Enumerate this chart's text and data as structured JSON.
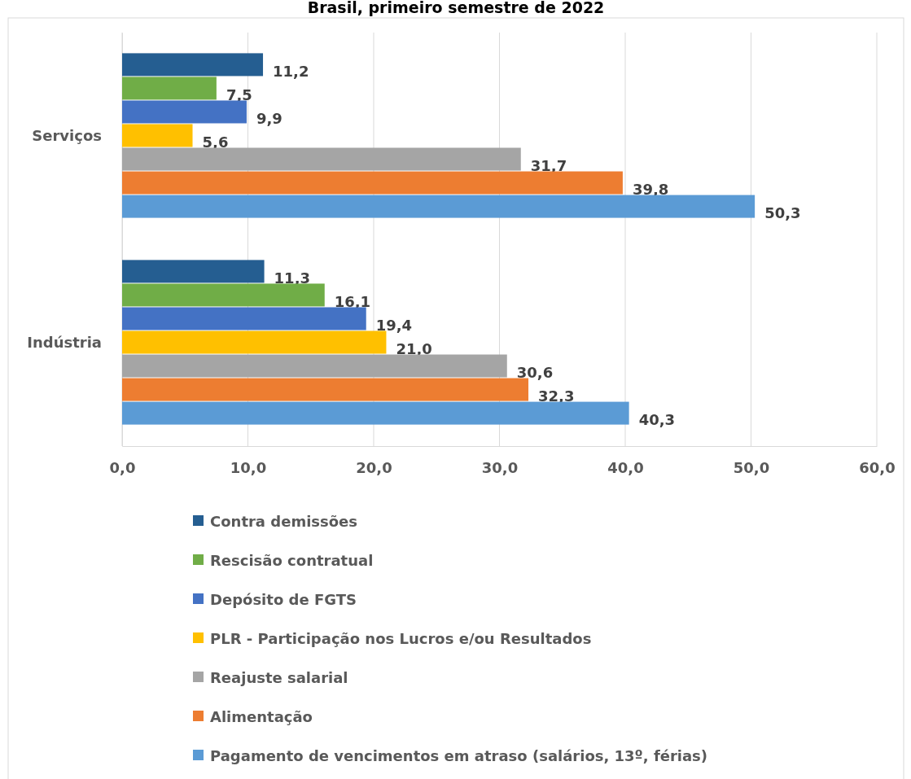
{
  "chart_data": {
    "type": "bar",
    "orientation": "horizontal",
    "title": "Brasil, primeiro semestre de 2022",
    "categories": [
      "Serviços",
      "Indústria"
    ],
    "series": [
      {
        "name": "Contra demissões",
        "color": "#255e91",
        "values": [
          11.2,
          11.3
        ],
        "value_labels": [
          "11,2",
          "11,3"
        ]
      },
      {
        "name": "Rescisão contratual",
        "color": "#70ad47",
        "values": [
          7.5,
          16.1
        ],
        "value_labels": [
          "7,5",
          "16,1"
        ]
      },
      {
        "name": "Depósito de FGTS",
        "color": "#4472c4",
        "values": [
          9.9,
          19.4
        ],
        "value_labels": [
          "9,9",
          "19,4"
        ]
      },
      {
        "name": "PLR - Participação nos Lucros e/ou Resultados",
        "color": "#ffc000",
        "values": [
          5.6,
          21.0
        ],
        "value_labels": [
          "5,6",
          "21,0"
        ]
      },
      {
        "name": "Reajuste salarial",
        "color": "#a5a5a5",
        "values": [
          31.7,
          30.6
        ],
        "value_labels": [
          "31,7",
          "30,6"
        ]
      },
      {
        "name": "Alimentação",
        "color": "#ed7d31",
        "values": [
          39.8,
          32.3
        ],
        "value_labels": [
          "39,8",
          "32,3"
        ]
      },
      {
        "name": "Pagamento de vencimentos em atraso (salários, 13º, férias)",
        "color": "#5b9bd5",
        "values": [
          50.3,
          40.3
        ],
        "value_labels": [
          "50,3",
          "40,3"
        ]
      }
    ],
    "xlim": [
      0,
      60
    ],
    "xticks": [
      {
        "value": 0,
        "label": "0,0"
      },
      {
        "value": 10,
        "label": "10,0"
      },
      {
        "value": 20,
        "label": "20,0"
      },
      {
        "value": 30,
        "label": "30,0"
      },
      {
        "value": 40,
        "label": "40,0"
      },
      {
        "value": 50,
        "label": "50,0"
      },
      {
        "value": 60,
        "label": "60,0"
      }
    ],
    "grid": "x",
    "legend": "bottom"
  }
}
